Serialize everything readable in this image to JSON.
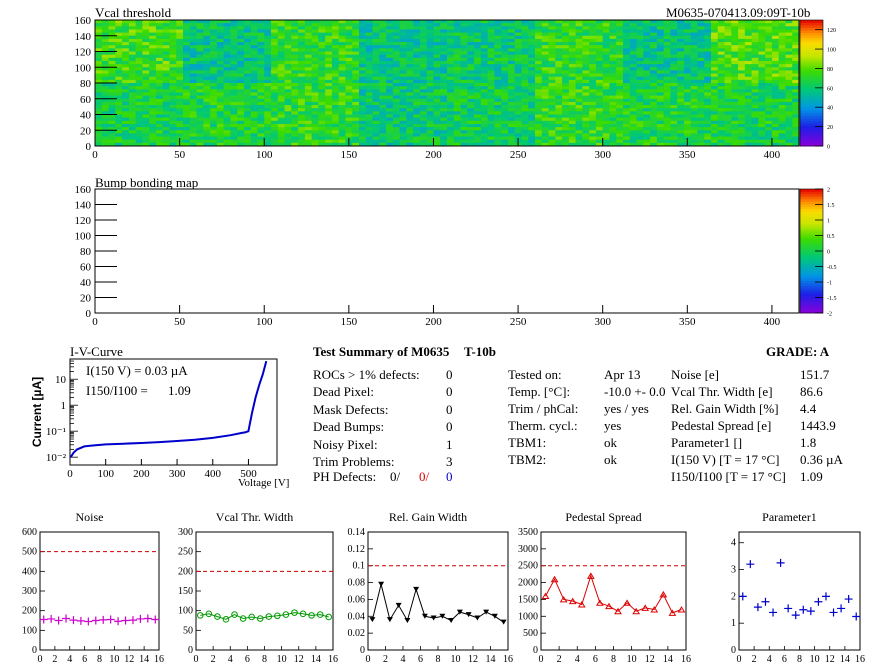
{
  "header": {
    "map_title": "Vcal threshold",
    "module_id": "M0635-070413.09:09T-10b",
    "bump_title": "Bump bonding map"
  },
  "map_axis": {
    "x_ticks": [
      "0",
      "50",
      "100",
      "150",
      "200",
      "250",
      "300",
      "350",
      "400"
    ],
    "y_ticks": [
      "0",
      "20",
      "40",
      "60",
      "80",
      "100",
      "120",
      "140",
      "160"
    ],
    "x_values": [
      0,
      50,
      100,
      150,
      200,
      250,
      300,
      350,
      400
    ],
    "y_values": [
      0,
      20,
      40,
      60,
      80,
      100,
      120,
      140,
      160
    ]
  },
  "colorbars": {
    "vcal_ticks": [
      "0",
      "20",
      "40",
      "60",
      "80",
      "100",
      "120"
    ],
    "vcal_values": [
      0,
      20,
      40,
      60,
      80,
      100,
      120
    ],
    "vcal_range": [
      0,
      130
    ],
    "bump_ticks": [
      "-2",
      "-1.5",
      "-1",
      "-0.5",
      "0",
      "0.5",
      "1",
      "1.5",
      "2"
    ],
    "bump_values": [
      -2,
      -1.5,
      -1,
      -0.5,
      0,
      0.5,
      1,
      1.5,
      2
    ],
    "bump_range": [
      -2,
      2
    ]
  },
  "iv": {
    "title": "I-V-Curve",
    "ylabel": "Current [µA]",
    "xlabel": "Voltage [V]",
    "x_ticks": [
      "0",
      "100",
      "200",
      "300",
      "400",
      "500"
    ],
    "y_ticks": [
      "10⁻²",
      "10⁻¹",
      "1",
      "10"
    ],
    "annotation_i150": "I(150 V) = 0.03 µA",
    "annotation_ratio_label": "I150/I100 =",
    "annotation_ratio_value": "1.09"
  },
  "summary": {
    "title": "Test Summary of M0635",
    "tag": "T-10b",
    "grade": "GRADE:  A",
    "defects": [
      {
        "label": "ROCs > 1% defects:",
        "value": "0"
      },
      {
        "label": "Dead Pixel:",
        "value": "0"
      },
      {
        "label": "Mask Defects:",
        "value": "0"
      },
      {
        "label": "Dead Bumps:",
        "value": "0"
      },
      {
        "label": "Noisy Pixel:",
        "value": "1"
      },
      {
        "label": "Trim Problems:",
        "value": "3"
      }
    ],
    "ph_label": "PH Defects:",
    "ph_values": [
      "0/",
      "0/",
      "0"
    ],
    "conditions": [
      {
        "label": "Tested on:",
        "value": "Apr 13"
      },
      {
        "label": "Temp. [°C]:",
        "value": "-10.0 +- 0.0"
      },
      {
        "label": "Trim / phCal:",
        "value": "yes / yes"
      },
      {
        "label": "Therm. cycl.:",
        "value": "yes"
      },
      {
        "label": "TBM1:",
        "value": "ok"
      },
      {
        "label": "TBM2:",
        "value": "ok"
      }
    ],
    "results": [
      {
        "label": "Noise [e]",
        "value": "151.7"
      },
      {
        "label": "Vcal Thr. Width [e]",
        "value": "86.6"
      },
      {
        "label": "Rel. Gain Width [%]",
        "value": "4.4"
      },
      {
        "label": "Pedestal Spread [e]",
        "value": "1443.9"
      },
      {
        "label": "Parameter1 []",
        "value": "1.8"
      },
      {
        "label": "I(150 V) [T = 17 °C]",
        "value": "0.36 µA"
      },
      {
        "label": "I150/I100  [T = 17 °C]",
        "value": "1.09"
      }
    ]
  },
  "colors": {
    "noise": "#cc00cc",
    "vcal": "#009900",
    "gain": "#000000",
    "pedestal": "#dd0000",
    "param": "#0000cc",
    "iv": "#0000cc",
    "limit": "#cc0000",
    "ph_red": "#dd0000",
    "ph_blue": "#0000cc"
  },
  "chart_data": [
    {
      "type": "heatmap",
      "title": "Vcal threshold",
      "x_range": [
        0,
        416
      ],
      "y_range": [
        0,
        160
      ],
      "roc_columns": 8,
      "roc_rows": 2,
      "roc_mean_values": [
        [
          66,
          68,
          72,
          60,
          64,
          72,
          68,
          66
        ],
        [
          76,
          58,
          72,
          58,
          61,
          72,
          58,
          78
        ]
      ],
      "z_range": [
        0,
        130
      ],
      "note_rows_order": "bottom row first (pixel rows 0-79), then top row (80-159)"
    },
    {
      "type": "heatmap",
      "title": "Bump bonding map",
      "x_range": [
        0,
        416
      ],
      "y_range": [
        0,
        160
      ],
      "z_range": [
        -2,
        2
      ],
      "values": "empty"
    },
    {
      "type": "line",
      "title": "I-V-Curve",
      "xlabel": "Voltage [V]",
      "ylabel": "Current [µA]",
      "yscale": "log",
      "xlim": [
        0,
        580
      ],
      "ylim": [
        0.005,
        60
      ],
      "x": [
        2,
        10,
        20,
        40,
        60,
        100,
        150,
        200,
        250,
        300,
        350,
        400,
        450,
        480,
        490,
        500,
        510,
        520,
        530,
        540,
        550
      ],
      "y": [
        0.01,
        0.015,
        0.02,
        0.026,
        0.028,
        0.031,
        0.033,
        0.035,
        0.038,
        0.042,
        0.047,
        0.055,
        0.07,
        0.085,
        0.09,
        0.1,
        0.5,
        2,
        6,
        15,
        50
      ]
    },
    {
      "type": "scatter",
      "title": "Noise",
      "xlim": [
        0,
        16
      ],
      "ylim": [
        0,
        600
      ],
      "limit_line": 500,
      "x_ticks": [
        "0",
        "2",
        "4",
        "6",
        "8",
        "10",
        "12",
        "14",
        "16"
      ],
      "y_ticks": [
        "0",
        "100",
        "200",
        "300",
        "400",
        "500",
        "600"
      ],
      "x": [
        0,
        1,
        2,
        3,
        4,
        5,
        6,
        7,
        8,
        9,
        10,
        11,
        12,
        13,
        14,
        15
      ],
      "y": [
        155,
        158,
        150,
        160,
        152,
        148,
        145,
        150,
        153,
        155,
        146,
        150,
        152,
        158,
        160,
        155
      ]
    },
    {
      "type": "line",
      "title": "Vcal Thr. Width",
      "xlim": [
        0,
        16
      ],
      "ylim": [
        0,
        300
      ],
      "limit_line": 200,
      "x_ticks": [
        "0",
        "2",
        "4",
        "6",
        "8",
        "10",
        "12",
        "14",
        "16"
      ],
      "y_ticks": [
        "0",
        "50",
        "100",
        "150",
        "200",
        "250",
        "300"
      ],
      "x": [
        0,
        1,
        2,
        3,
        4,
        5,
        6,
        7,
        8,
        9,
        10,
        11,
        12,
        13,
        14,
        15
      ],
      "y": [
        88,
        92,
        85,
        78,
        90,
        80,
        84,
        80,
        85,
        87,
        90,
        95,
        92,
        88,
        90,
        84
      ]
    },
    {
      "type": "line",
      "title": "Rel. Gain Width",
      "xlim": [
        0,
        16
      ],
      "ylim": [
        0,
        0.14
      ],
      "limit_line": 0.1,
      "x_ticks": [
        "0",
        "2",
        "4",
        "6",
        "8",
        "10",
        "12",
        "14",
        "16"
      ],
      "y_ticks": [
        "0",
        "0.02",
        "0.04",
        "0.06",
        "0.08",
        "0.1",
        "0.12",
        "0.14"
      ],
      "x": [
        0,
        1,
        2,
        3,
        4,
        5,
        6,
        7,
        8,
        9,
        10,
        11,
        12,
        13,
        14,
        15
      ],
      "y": [
        0.036,
        0.078,
        0.036,
        0.053,
        0.035,
        0.072,
        0.04,
        0.038,
        0.04,
        0.035,
        0.045,
        0.042,
        0.038,
        0.045,
        0.04,
        0.033
      ]
    },
    {
      "type": "line",
      "title": "Pedestal Spread",
      "xlim": [
        0,
        16
      ],
      "ylim": [
        0,
        3500
      ],
      "limit_line": 2500,
      "x_ticks": [
        "0",
        "2",
        "4",
        "6",
        "8",
        "10",
        "12",
        "14",
        "16"
      ],
      "y_ticks": [
        "0",
        "500",
        "1000",
        "1500",
        "2000",
        "2500",
        "3000",
        "3500"
      ],
      "x": [
        0,
        1,
        2,
        3,
        4,
        5,
        6,
        7,
        8,
        9,
        10,
        11,
        12,
        13,
        14,
        15
      ],
      "y": [
        1600,
        2100,
        1500,
        1450,
        1350,
        2200,
        1400,
        1300,
        1150,
        1400,
        1150,
        1250,
        1200,
        1650,
        1100,
        1200
      ]
    },
    {
      "type": "scatter",
      "title": "Parameter1",
      "xlim": [
        0,
        16
      ],
      "ylim": [
        0,
        4.4
      ],
      "x_ticks": [
        "0",
        "2",
        "4",
        "6",
        "8",
        "10",
        "12",
        "14",
        "16"
      ],
      "y_ticks": [
        "0",
        "1",
        "2",
        "3",
        "4"
      ],
      "x": [
        0,
        1,
        2,
        3,
        4,
        5,
        6,
        7,
        8,
        9,
        10,
        11,
        12,
        13,
        14,
        15
      ],
      "y": [
        2.0,
        3.2,
        1.6,
        1.8,
        1.4,
        3.25,
        1.55,
        1.3,
        1.5,
        1.45,
        1.8,
        2.0,
        1.4,
        1.55,
        1.9,
        1.25
      ]
    }
  ]
}
